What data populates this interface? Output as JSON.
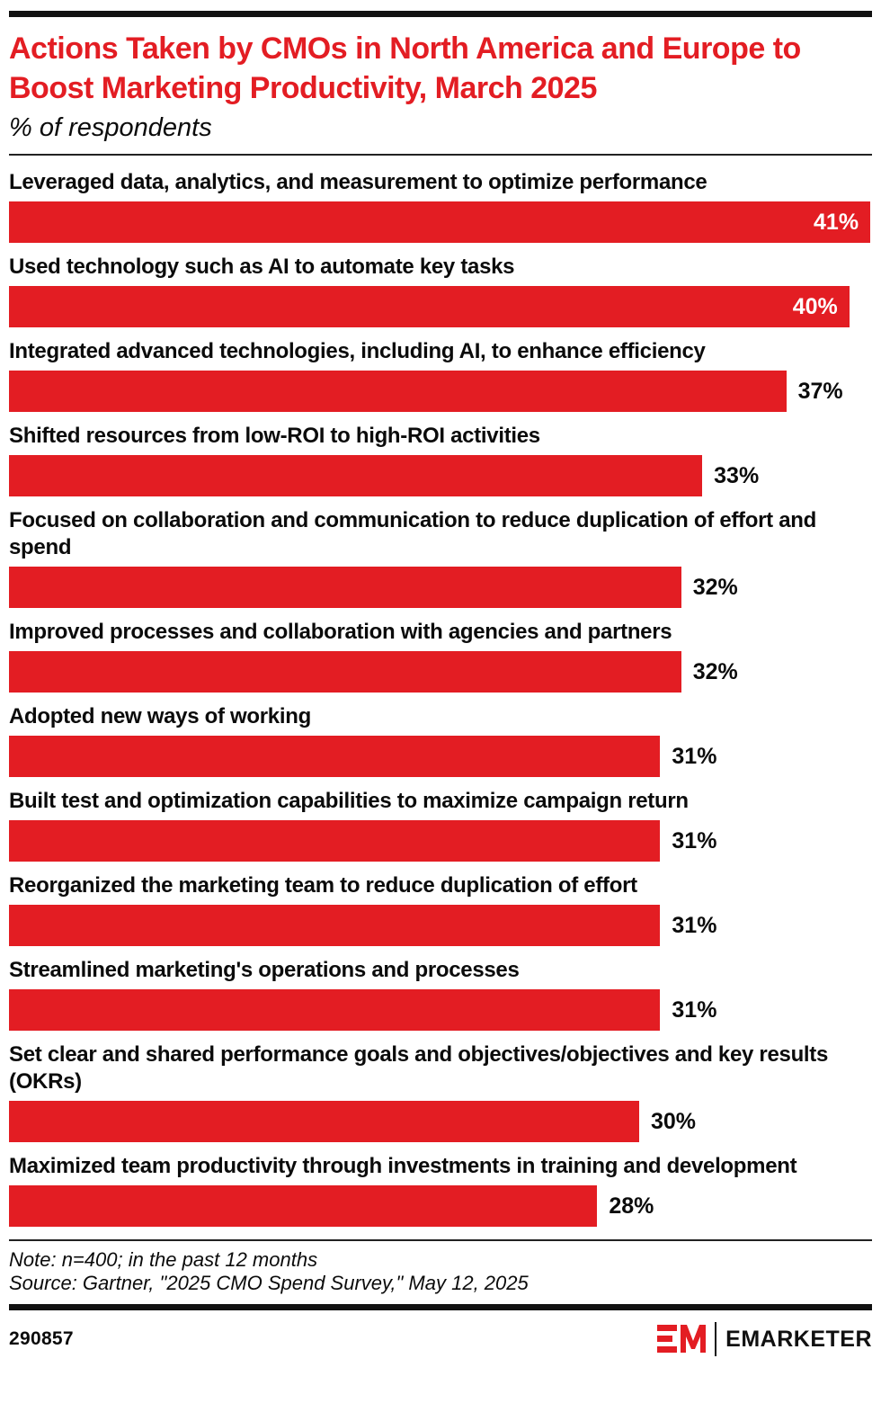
{
  "meta": {
    "brand_red": "#e31d23",
    "text_black": "#0b0b0b"
  },
  "header": {
    "title": "Actions Taken by CMOs in North America and Europe to Boost Marketing Productivity, March 2025",
    "subtitle": "% of respondents"
  },
  "chart_data": {
    "type": "bar",
    "orientation": "horizontal",
    "unit": "%",
    "title": "Actions Taken by CMOs in North America and Europe to Boost Marketing Productivity, March 2025",
    "subtitle": "% of respondents",
    "xlabel": "",
    "ylabel": "",
    "xlim": [
      0,
      41
    ],
    "grid": false,
    "legend": "none",
    "bar_color": "#e31d23",
    "categories": [
      "Leveraged data, analytics, and measurement to optimize performance",
      "Used technology such as AI to automate key tasks",
      "Integrated advanced technologies, including AI, to enhance efficiency",
      "Shifted resources from low-ROI to high-ROI activities",
      "Focused on collaboration and communication to reduce duplication of effort and spend",
      "Improved processes and collaboration with agencies and partners",
      "Adopted new ways of working",
      "Built test and optimization capabilities to maximize campaign return",
      "Reorganized the marketing team to reduce duplication of effort",
      "Streamlined marketing's operations and processes",
      "Set clear and shared performance goals and objectives/objectives and key results (OKRs)",
      "Maximized team productivity through investments in training and development"
    ],
    "values": [
      41,
      40,
      37,
      33,
      32,
      32,
      31,
      31,
      31,
      31,
      30,
      28
    ],
    "value_labels": [
      "41%",
      "40%",
      "37%",
      "33%",
      "32%",
      "32%",
      "31%",
      "31%",
      "31%",
      "31%",
      "30%",
      "28%"
    ]
  },
  "footer": {
    "note": "Note: n=400; in the past 12 months",
    "source": "Source: Gartner, \"2025 CMO Spend Survey,\" May 12, 2025",
    "chart_id": "290857",
    "logo_monogram": "EM",
    "logo_text": "EMARKETER"
  }
}
